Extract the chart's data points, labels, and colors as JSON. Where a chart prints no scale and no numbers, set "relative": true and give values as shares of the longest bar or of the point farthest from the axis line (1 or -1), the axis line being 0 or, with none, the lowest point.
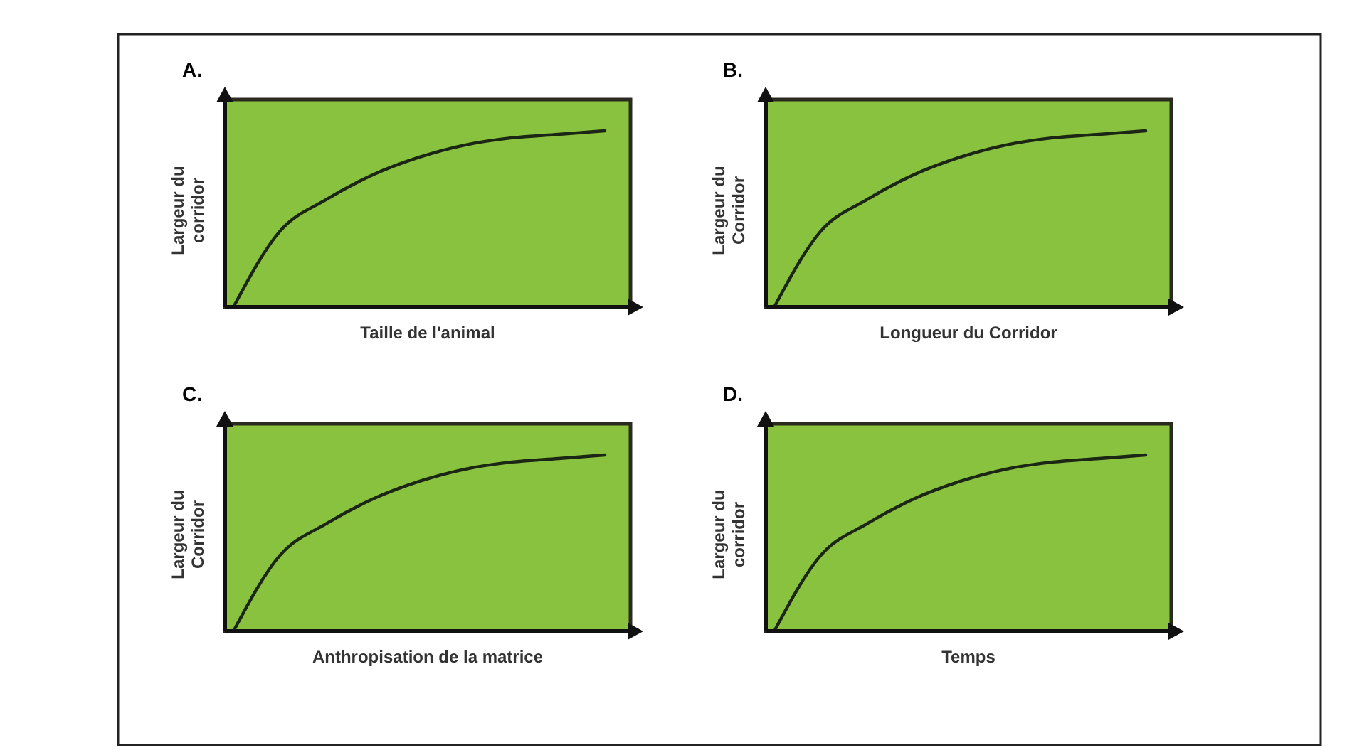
{
  "chart_data": [
    {
      "type": "line",
      "title": "A.",
      "xlabel": "Taille de l'animal",
      "ylabel": "Largeur du\ncorridor",
      "relative": true,
      "categories": [
        null,
        null,
        null,
        null,
        null,
        null,
        null,
        null,
        null
      ],
      "series": [
        {
          "color": "#1c2614",
          "values": [
            0,
            0.43,
            0.61,
            0.75,
            0.85,
            0.92,
            0.96,
            0.98,
            1
          ]
        }
      ]
    },
    {
      "type": "line",
      "title": "B.",
      "xlabel": "Longueur du Corridor",
      "ylabel": "Largeur du\nCorridor",
      "relative": true,
      "categories": [
        null,
        null,
        null,
        null,
        null,
        null,
        null,
        null,
        null
      ],
      "series": [
        {
          "color": "#1c2614",
          "values": [
            0,
            0.43,
            0.61,
            0.75,
            0.85,
            0.92,
            0.96,
            0.98,
            1
          ]
        }
      ]
    },
    {
      "type": "line",
      "title": "C.",
      "xlabel": "Anthropisation de la matrice",
      "ylabel": "Largeur du\nCorridor",
      "relative": true,
      "categories": [
        null,
        null,
        null,
        null,
        null,
        null,
        null,
        null,
        null
      ],
      "series": [
        {
          "color": "#1c2614",
          "values": [
            0,
            0.43,
            0.61,
            0.75,
            0.85,
            0.92,
            0.96,
            0.98,
            1
          ]
        }
      ]
    },
    {
      "type": "line",
      "title": "D.",
      "xlabel": "Temps",
      "ylabel": "Largeur du\ncorridor",
      "relative": true,
      "categories": [
        null,
        null,
        null,
        null,
        null,
        null,
        null,
        null,
        null
      ],
      "series": [
        {
          "color": "#1c2614",
          "values": [
            0,
            0.43,
            0.61,
            0.75,
            0.85,
            0.92,
            0.96,
            0.98,
            1
          ]
        }
      ]
    }
  ]
}
